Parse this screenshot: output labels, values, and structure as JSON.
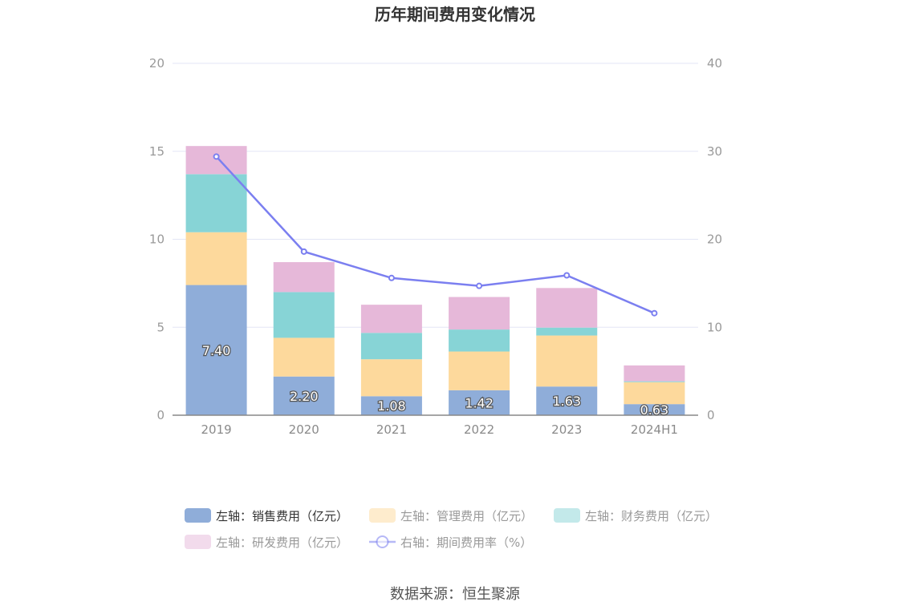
{
  "chart_data": {
    "type": "bar",
    "title": "历年期间费用变化情况",
    "categories": [
      "2019",
      "2020",
      "2021",
      "2022",
      "2023",
      "2024H1"
    ],
    "left_axis": {
      "ylim": [
        0,
        20
      ],
      "ticks": [
        "0",
        "5",
        "10",
        "15",
        "20"
      ]
    },
    "right_axis": {
      "ylim": [
        0,
        40
      ],
      "ticks": [
        "0",
        "10",
        "20",
        "30",
        "40"
      ]
    },
    "grid": true,
    "legend_position": "bottom",
    "series": [
      {
        "name": "左轴：销售费用（亿元）",
        "type": "bar",
        "stack": true,
        "color": "#8fadd9",
        "values": [
          7.4,
          2.2,
          1.08,
          1.42,
          1.63,
          0.63
        ],
        "labels": [
          "7.40",
          "2.20",
          "1.08",
          "1.42",
          "1.63",
          "0.63"
        ]
      },
      {
        "name": "左轴：管理费用（亿元）",
        "type": "bar",
        "stack": true,
        "color": "#fdd99c",
        "values": [
          3.0,
          2.2,
          2.1,
          2.2,
          2.9,
          1.25
        ]
      },
      {
        "name": "左轴：财务费用（亿元）",
        "type": "bar",
        "stack": true,
        "color": "#87d4d6",
        "values": [
          3.3,
          2.6,
          1.5,
          1.25,
          0.45,
          0.05
        ]
      },
      {
        "name": "左轴：研发费用（亿元）",
        "type": "bar",
        "stack": true,
        "color": "#e6b8d9",
        "values": [
          1.6,
          1.7,
          1.6,
          1.85,
          2.25,
          0.9
        ]
      },
      {
        "name": "右轴：期间费用率（%）",
        "type": "line",
        "axis": "right",
        "color": "#7b7ff0",
        "values": [
          29.4,
          18.6,
          15.6,
          14.7,
          15.9,
          11.6
        ]
      }
    ]
  },
  "source": "数据来源：恒生聚源"
}
